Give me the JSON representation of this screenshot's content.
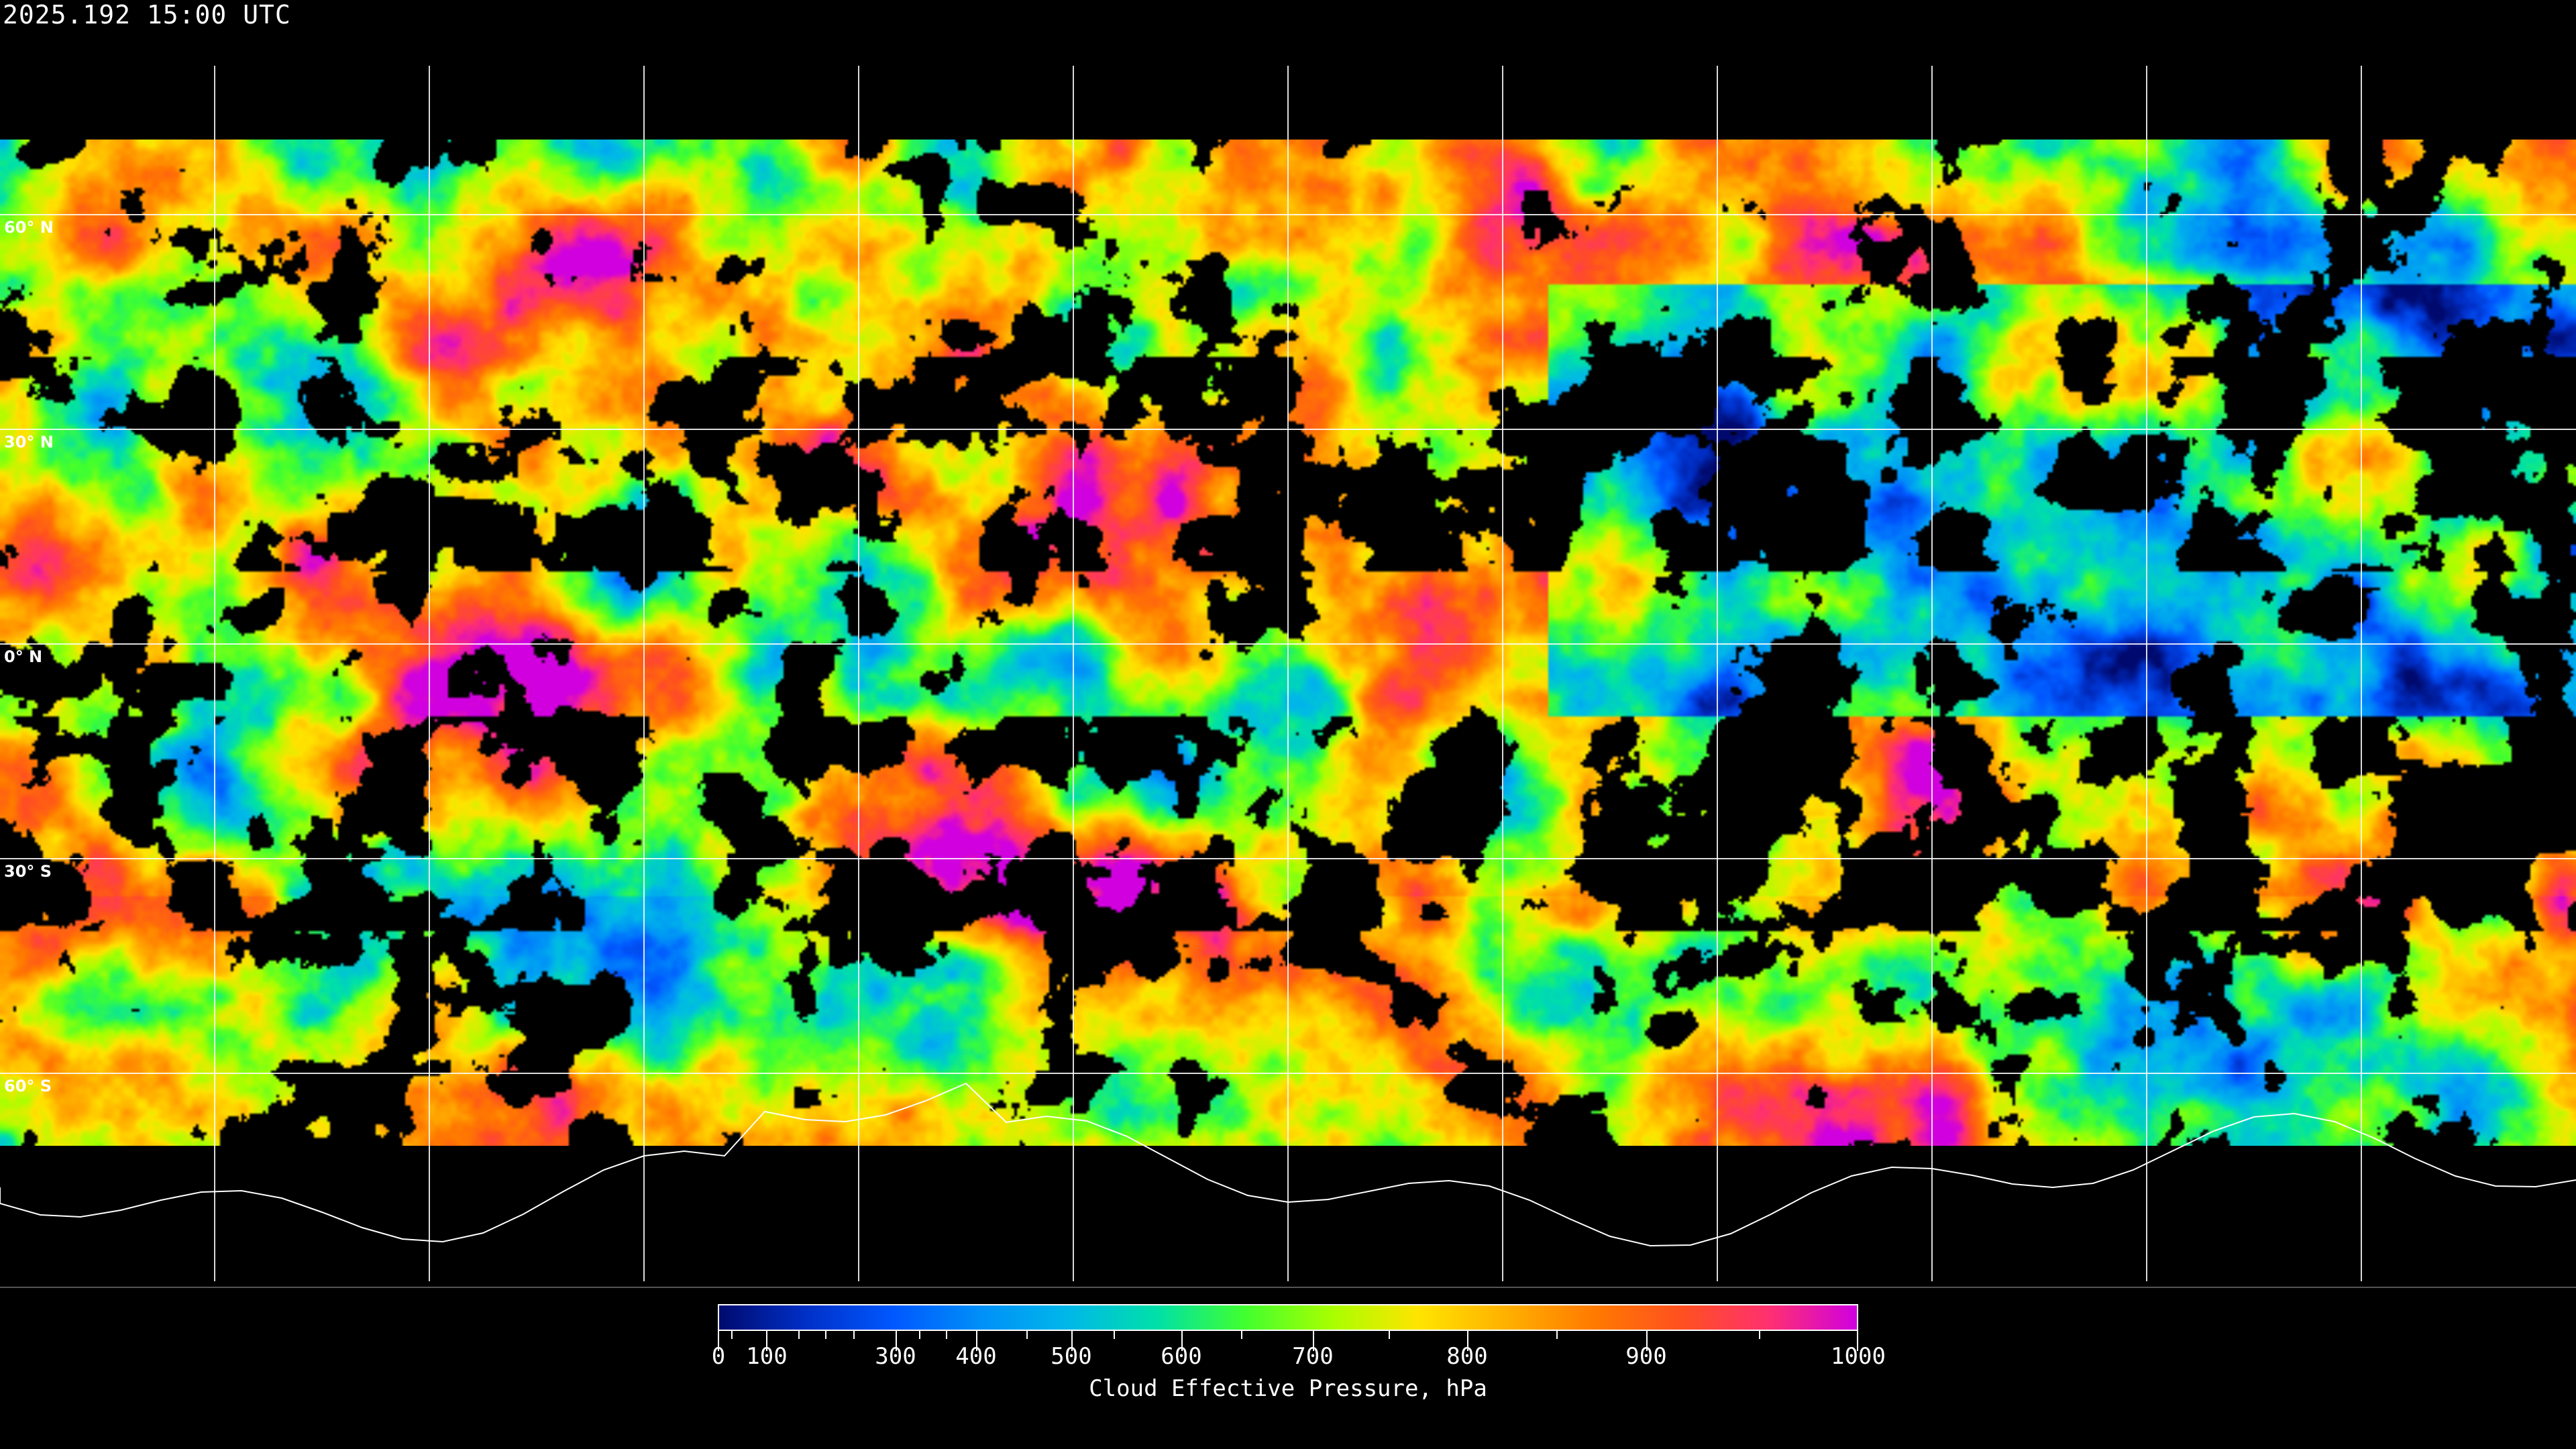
{
  "header": {
    "timestamp": "2025.192 15:00 UTC"
  },
  "map": {
    "projection": "equirectangular",
    "latitude_labels": [
      "60° N",
      "30° N",
      "0° N",
      "30° S",
      "60° S"
    ],
    "grid_color": "#ffffff",
    "coastline_color": "#ffffff",
    "no_data_color": "#000000"
  },
  "colorbar": {
    "title": "Cloud Effective Pressure, hPa",
    "min": 0,
    "max": 1000,
    "tick_labels": [
      "0",
      "100",
      "300",
      "400",
      "500",
      "600",
      "700",
      "800",
      "900",
      "1000"
    ],
    "colormap": [
      "#000a6e",
      "#0030c8",
      "#0058ff",
      "#0090f8",
      "#00b8e8",
      "#00e0a8",
      "#40ff30",
      "#a8ff00",
      "#ffe400",
      "#ffb000",
      "#ff7a00",
      "#ff5020",
      "#ff3070",
      "#d000e0"
    ]
  }
}
